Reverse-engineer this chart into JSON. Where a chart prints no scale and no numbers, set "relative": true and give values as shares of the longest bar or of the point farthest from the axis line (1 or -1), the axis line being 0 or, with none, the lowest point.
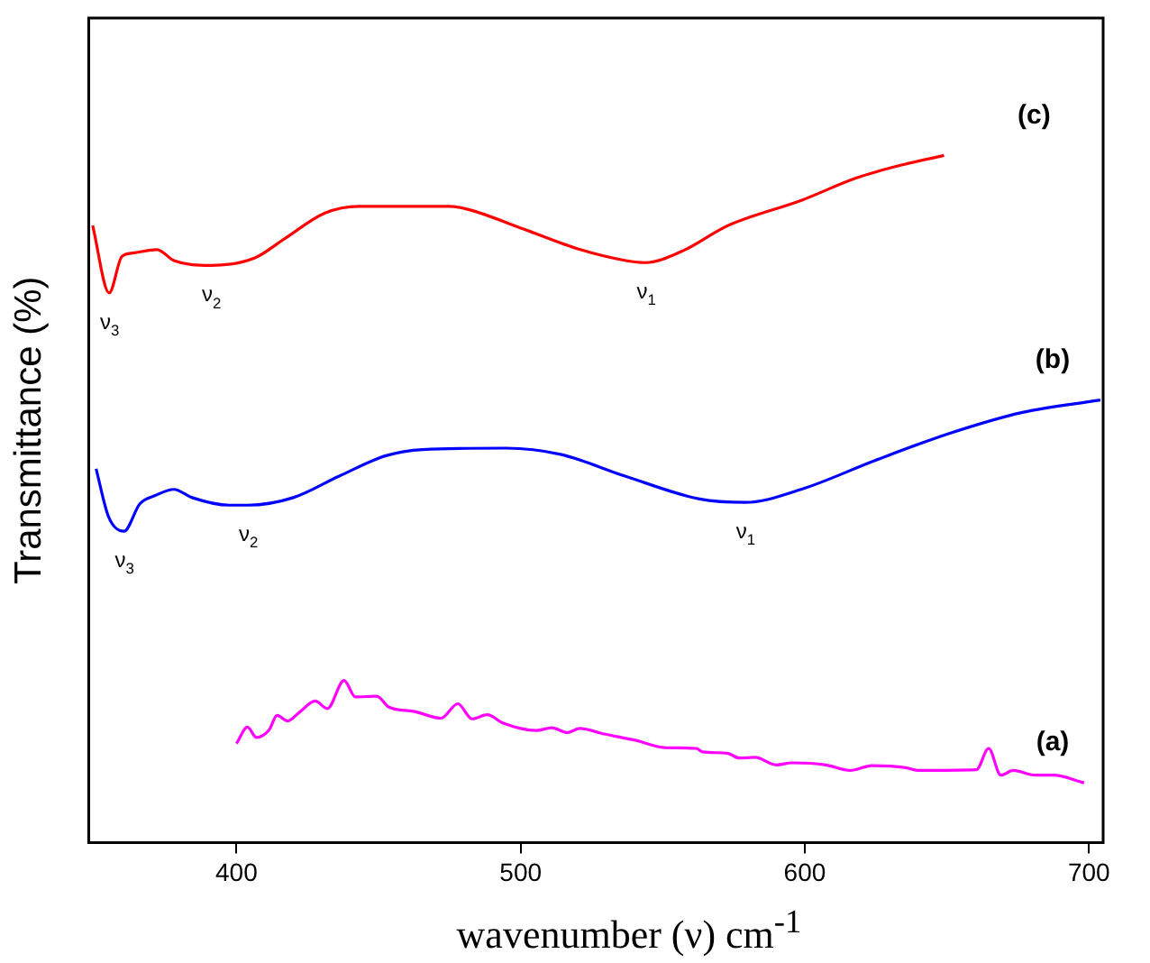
{
  "chart_data": {
    "type": "line",
    "xlabel": "wavenumber (ν) cm$^{-1}$",
    "ylabel": "Transmittance (%)",
    "relative": true,
    "xlim": [
      348,
      705
    ],
    "xticks": [
      400,
      500,
      600,
      700
    ],
    "grid": false,
    "legend": false,
    "marker": "none",
    "line_style": "solid",
    "series": [
      {
        "name": "(c)",
        "color": "#ff0000",
        "x": [
          349.4,
          355.2,
          359.7,
          363.6,
          372,
          378,
          391,
          406.5,
          417,
          431,
          443,
          475,
          482,
          501,
          521,
          537,
          544,
          556.5,
          573,
          599,
          618,
          634,
          649
        ],
        "values": [
          0.898,
          0.8,
          0.853,
          0.858,
          0.863,
          0.847,
          0.84,
          0.851,
          0.879,
          0.916,
          0.926,
          0.926,
          0.921,
          0.893,
          0.863,
          0.847,
          0.844,
          0.86,
          0.898,
          0.935,
          0.967,
          0.986,
          1.0
        ]
      },
      {
        "name": "(b)",
        "color": "#0000ff",
        "x": [
          350.6,
          355,
          360.4,
          366,
          371.4,
          378,
          384.4,
          397.4,
          404,
          420,
          436,
          452.6,
          465.6,
          494.8,
          514,
          537,
          563,
          579,
          598.7,
          624.7,
          650.6,
          676.6,
          704
        ],
        "values": [
          0.544,
          0.474,
          0.453,
          0.493,
          0.505,
          0.514,
          0.502,
          0.491,
          0.491,
          0.502,
          0.533,
          0.563,
          0.572,
          0.574,
          0.565,
          0.533,
          0.5,
          0.495,
          0.514,
          0.556,
          0.595,
          0.626,
          0.644
        ]
      },
      {
        "name": "(a)",
        "color": "#ff00ff",
        "x": [
          400,
          403.9,
          407,
          411.5,
          414.3,
          418,
          422.3,
          427.7,
          432,
          437.9,
          441.8,
          449.4,
          453.7,
          462.3,
          472,
          477.9,
          482.9,
          488.3,
          493.7,
          505.6,
          511,
          516.4,
          520.8,
          529.4,
          540.3,
          551.1,
          561.9,
          564,
          572.7,
          577,
          582.5,
          590,
          595.5,
          607.4,
          616,
          623.6,
          635.5,
          639.8,
          660.4,
          664.7,
          669,
          673.4,
          681,
          687.5,
          698.3
        ],
        "values": [
          0.144,
          0.168,
          0.153,
          0.164,
          0.185,
          0.177,
          0.19,
          0.206,
          0.195,
          0.236,
          0.212,
          0.213,
          0.197,
          0.191,
          0.181,
          0.202,
          0.18,
          0.186,
          0.174,
          0.163,
          0.167,
          0.16,
          0.166,
          0.158,
          0.149,
          0.138,
          0.137,
          0.132,
          0.13,
          0.123,
          0.124,
          0.113,
          0.116,
          0.113,
          0.105,
          0.112,
          0.109,
          0.105,
          0.106,
          0.137,
          0.098,
          0.105,
          0.098,
          0.098,
          0.087
        ]
      }
    ],
    "annotations": [
      {
        "text": "ν$_{3}$",
        "x": 355.2,
        "y": 0.8
      },
      {
        "text": "ν$_{2}$",
        "x": 391,
        "y": 0.84
      },
      {
        "text": "ν$_{1}$",
        "x": 544,
        "y": 0.844
      },
      {
        "text": "ν$_{3}$",
        "x": 360.4,
        "y": 0.453
      },
      {
        "text": "ν$_{2}$",
        "x": 404,
        "y": 0.491
      },
      {
        "text": "ν$_{1}$",
        "x": 579,
        "y": 0.495
      }
    ]
  }
}
